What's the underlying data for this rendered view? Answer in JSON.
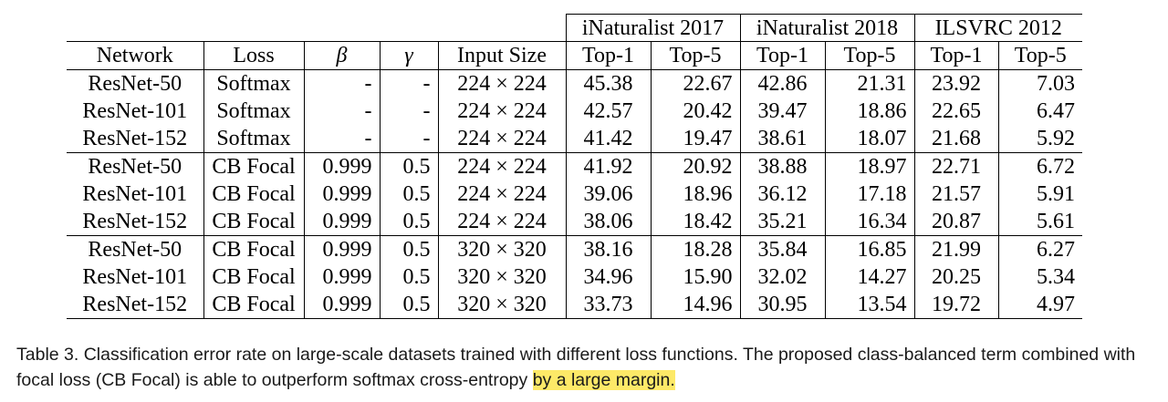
{
  "table": {
    "groups": [
      "iNaturalist 2017",
      "iNaturalist 2018",
      "ILSVRC 2012"
    ],
    "headers": {
      "network": "Network",
      "loss": "Loss",
      "beta": "β",
      "gamma": "γ",
      "input_size": "Input Size",
      "top1": "Top-1",
      "top5": "Top-5"
    },
    "rows": [
      [
        "ResNet-50",
        "Softmax",
        "-",
        "-",
        "224 × 224",
        "45.38",
        "22.67",
        "42.86",
        "21.31",
        "23.92",
        "7.03"
      ],
      [
        "ResNet-101",
        "Softmax",
        "-",
        "-",
        "224 × 224",
        "42.57",
        "20.42",
        "39.47",
        "18.86",
        "22.65",
        "6.47"
      ],
      [
        "ResNet-152",
        "Softmax",
        "-",
        "-",
        "224 × 224",
        "41.42",
        "19.47",
        "38.61",
        "18.07",
        "21.68",
        "5.92"
      ],
      [
        "ResNet-50",
        "CB Focal",
        "0.999",
        "0.5",
        "224 × 224",
        "41.92",
        "20.92",
        "38.88",
        "18.97",
        "22.71",
        "6.72"
      ],
      [
        "ResNet-101",
        "CB Focal",
        "0.999",
        "0.5",
        "224 × 224",
        "39.06",
        "18.96",
        "36.12",
        "17.18",
        "21.57",
        "5.91"
      ],
      [
        "ResNet-152",
        "CB Focal",
        "0.999",
        "0.5",
        "224 × 224",
        "38.06",
        "18.42",
        "35.21",
        "16.34",
        "20.87",
        "5.61"
      ],
      [
        "ResNet-50",
        "CB Focal",
        "0.999",
        "0.5",
        "320 × 320",
        "38.16",
        "18.28",
        "35.84",
        "16.85",
        "21.99",
        "6.27"
      ],
      [
        "ResNet-101",
        "CB Focal",
        "0.999",
        "0.5",
        "320 × 320",
        "34.96",
        "15.90",
        "32.02",
        "14.27",
        "20.25",
        "5.34"
      ],
      [
        "ResNet-152",
        "CB Focal",
        "0.999",
        "0.5",
        "320 × 320",
        "33.73",
        "14.96",
        "30.95",
        "13.54",
        "19.72",
        "4.97"
      ]
    ]
  },
  "caption": {
    "text": "Table 3. Classification error rate on large-scale datasets trained with different loss functions. The proposed class-balanced term combined with focal loss (CB Focal) is able to outperform softmax cross-entropy ",
    "highlighted": "by a large margin.",
    "highlight_color": "#fde968"
  }
}
